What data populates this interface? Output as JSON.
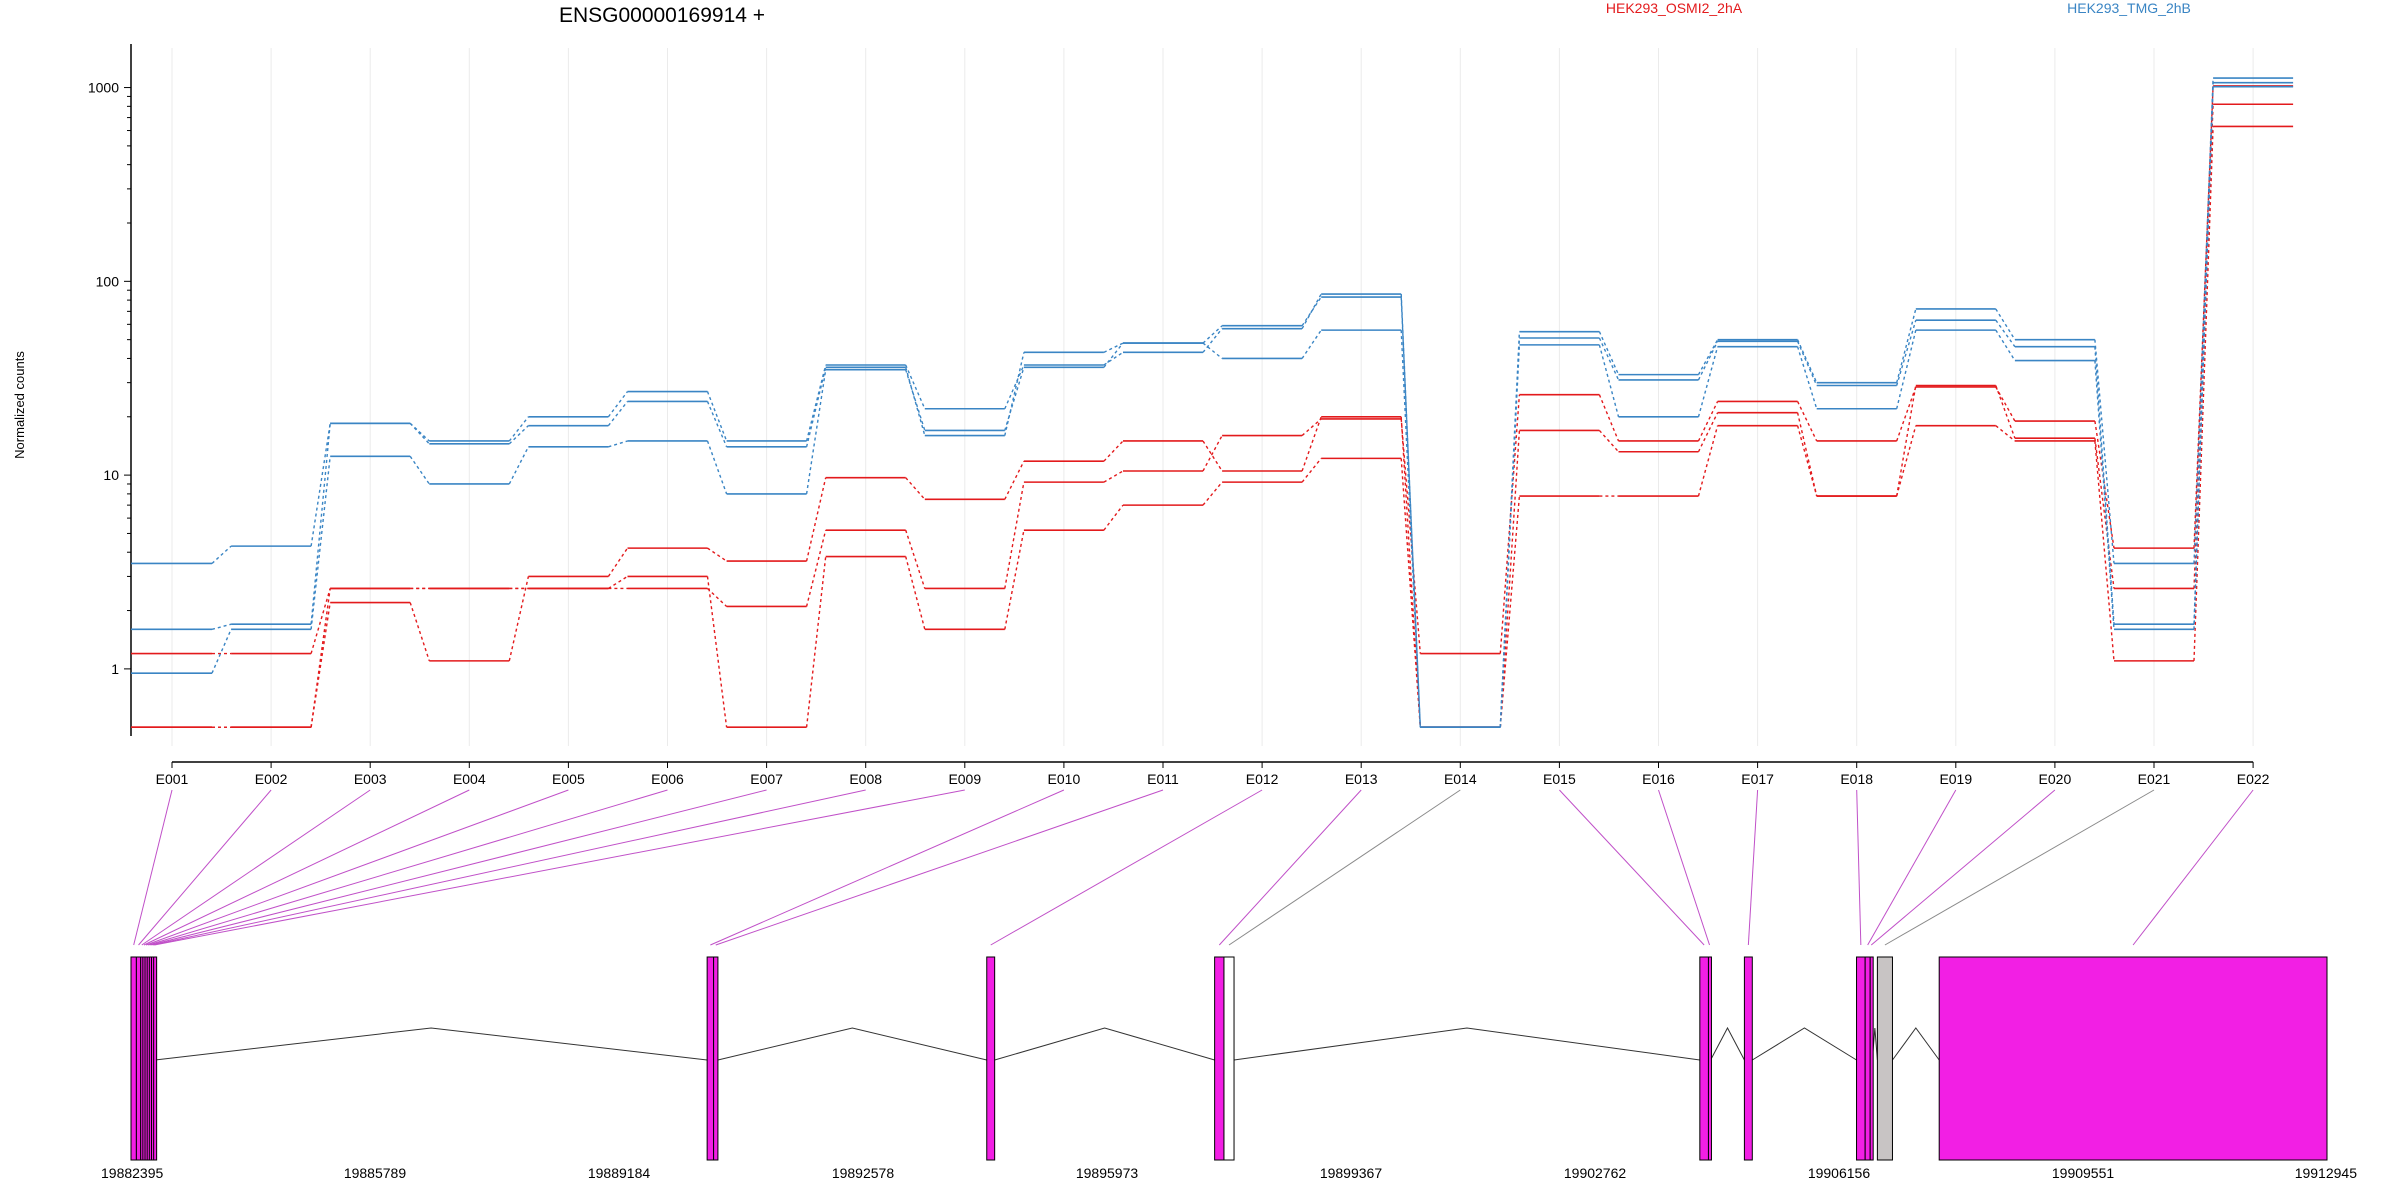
{
  "chart_data": {
    "type": "line",
    "title": "ENSG00000169914 +",
    "ylabel": "Normalized counts",
    "yscale": "log",
    "ylim": [
      0.4,
      1600
    ],
    "yticks": [
      "1",
      "10",
      "100",
      "1000"
    ],
    "grid": true,
    "legend_position": "top-right",
    "categories": [
      "E001",
      "E002",
      "E003",
      "E004",
      "E005",
      "E006",
      "E007",
      "E008",
      "E009",
      "E010",
      "E011",
      "E012",
      "E013",
      "E014",
      "E015",
      "E016",
      "E017",
      "E018",
      "E019",
      "E020",
      "E021",
      "E022"
    ],
    "series": [
      {
        "name": "HEK293_OSMI2_2hA",
        "color": "#e31a1c",
        "values": [
          1.2,
          1.2,
          2.6,
          2.6,
          2.6,
          2.6,
          2.1,
          5.2,
          2.6,
          9.2,
          10.5,
          16.0,
          19.5,
          1.2,
          26.0,
          15.0,
          24.0,
          15.0,
          28.5,
          19.0,
          4.2,
          1020
        ]
      },
      {
        "name": "",
        "color": "#e31a1c",
        "values": [
          0.5,
          0.5,
          2.2,
          1.1,
          3.0,
          4.2,
          3.6,
          9.7,
          7.5,
          11.8,
          15.0,
          10.5,
          20.0,
          0.5,
          17.0,
          13.2,
          21.0,
          7.8,
          29.0,
          15.5,
          2.6,
          820
        ]
      },
      {
        "name": "",
        "color": "#e31a1c",
        "values": [
          0.5,
          0.5,
          2.6,
          2.6,
          2.6,
          3.0,
          0.5,
          3.8,
          1.6,
          5.2,
          7.0,
          9.2,
          12.2,
          0.5,
          7.8,
          7.8,
          18.0,
          7.8,
          18.0,
          15.0,
          1.1,
          630
        ]
      },
      {
        "name": "HEK293_TMG_2hB",
        "color": "#3a85c4",
        "values": [
          3.5,
          4.3,
          18.5,
          15.0,
          20.0,
          27.0,
          15.0,
          37.0,
          22.0,
          37.0,
          43.0,
          57.0,
          86.0,
          0.5,
          55.0,
          33.0,
          50.0,
          30.0,
          72.0,
          50.0,
          3.5,
          1120
        ]
      },
      {
        "name": "",
        "color": "#3a85c4",
        "values": [
          1.6,
          1.7,
          18.5,
          14.5,
          18.0,
          24.0,
          14.0,
          36.0,
          16.0,
          43.0,
          48.0,
          59.0,
          83.0,
          0.5,
          51.0,
          31.0,
          49.0,
          29.0,
          63.0,
          46.0,
          1.7,
          1060
        ]
      },
      {
        "name": "",
        "color": "#3a85c4",
        "values": [
          0.95,
          1.6,
          12.5,
          9.0,
          14.0,
          15.0,
          8.0,
          35.0,
          17.0,
          36.0,
          48.0,
          40.0,
          56.0,
          0.5,
          47.0,
          20.0,
          46.0,
          22.0,
          56.0,
          39.0,
          1.6,
          1010
        ]
      }
    ],
    "gene_model": {
      "coordinate_labels": [
        "19882395",
        "19885789",
        "19889184",
        "19892578",
        "19895973",
        "19899367",
        "19902762",
        "19906156",
        "19909551",
        "19912945"
      ],
      "coordinate_range": [
        19882395,
        19912945
      ],
      "exon_fill_color": "#f21fe4",
      "nontested_fill_color": "#c8c4c4",
      "exons": [
        {
          "id": "E001",
          "start": 19882395,
          "end": 19882470,
          "fill": "#f21fe4"
        },
        {
          "id": "E002",
          "start": 19882470,
          "end": 19882530,
          "fill": "#f21fe4"
        },
        {
          "id": "E003",
          "start": 19882530,
          "end": 19882560,
          "fill": "#f21fe4"
        },
        {
          "id": "E004",
          "start": 19882560,
          "end": 19882590,
          "fill": "#f21fe4"
        },
        {
          "id": "E005",
          "start": 19882590,
          "end": 19882620,
          "fill": "#f21fe4"
        },
        {
          "id": "E006",
          "start": 19882620,
          "end": 19882650,
          "fill": "#f21fe4"
        },
        {
          "id": "E007",
          "start": 19882650,
          "end": 19882680,
          "fill": "#f21fe4"
        },
        {
          "id": "E008",
          "start": 19882680,
          "end": 19882710,
          "fill": "#f21fe4"
        },
        {
          "id": "E009",
          "start": 19882710,
          "end": 19882730,
          "fill": "#f21fe4"
        },
        {
          "id": "E010",
          "start": 19890410,
          "end": 19890500,
          "fill": "#f21fe4"
        },
        {
          "id": "E011",
          "start": 19890500,
          "end": 19890560,
          "fill": "#f21fe4"
        },
        {
          "id": "E012",
          "start": 19894300,
          "end": 19894410,
          "fill": "#f21fe4"
        },
        {
          "id": "E013",
          "start": 19897470,
          "end": 19897600,
          "fill": "#f21fe4"
        },
        {
          "id": "E014",
          "start": 19897600,
          "end": 19897740,
          "fill": "#ffffff"
        },
        {
          "id": "E015",
          "start": 19904220,
          "end": 19904340,
          "fill": "#f21fe4"
        },
        {
          "id": "E016",
          "start": 19904340,
          "end": 19904370,
          "fill": "#f21fe4"
        },
        {
          "id": "E017",
          "start": 19904840,
          "end": 19904950,
          "fill": "#f21fe4"
        },
        {
          "id": "E018",
          "start": 19906400,
          "end": 19906520,
          "fill": "#f21fe4"
        },
        {
          "id": "E019",
          "start": 19906520,
          "end": 19906590,
          "fill": "#f21fe4"
        },
        {
          "id": "E020",
          "start": 19906590,
          "end": 19906620,
          "fill": "#f21fe4"
        },
        {
          "id": "E021",
          "start": 19906690,
          "end": 19906900,
          "fill": "#c8c4c4"
        },
        {
          "id": "E022",
          "start": 19907550,
          "end": 19912945,
          "fill": "#f21fe4"
        }
      ]
    }
  }
}
